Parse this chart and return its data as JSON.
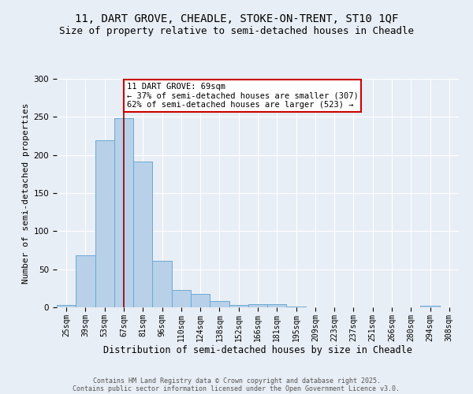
{
  "title_line1": "11, DART GROVE, CHEADLE, STOKE-ON-TRENT, ST10 1QF",
  "title_line2": "Size of property relative to semi-detached houses in Cheadle",
  "xlabel": "Distribution of semi-detached houses by size in Cheadle",
  "ylabel": "Number of semi-detached properties",
  "categories": [
    "25sqm",
    "39sqm",
    "53sqm",
    "67sqm",
    "81sqm",
    "96sqm",
    "110sqm",
    "124sqm",
    "138sqm",
    "152sqm",
    "166sqm",
    "181sqm",
    "195sqm",
    "209sqm",
    "223sqm",
    "237sqm",
    "251sqm",
    "266sqm",
    "280sqm",
    "294sqm",
    "308sqm"
  ],
  "values": [
    3,
    68,
    219,
    248,
    191,
    61,
    23,
    18,
    8,
    3,
    4,
    4,
    1,
    0,
    0,
    0,
    0,
    0,
    0,
    2,
    0
  ],
  "bar_color": "#b8d0e8",
  "bar_edge_color": "#6aaad4",
  "marker_bin_index": 3,
  "marker_color": "#8b0000",
  "annotation_title": "11 DART GROVE: 69sqm",
  "annotation_line2": "← 37% of semi-detached houses are smaller (307)",
  "annotation_line3": "62% of semi-detached houses are larger (523) →",
  "annotation_box_color": "#ffffff",
  "annotation_border_color": "#cc0000",
  "ylim": [
    0,
    300
  ],
  "yticks": [
    0,
    50,
    100,
    150,
    200,
    250,
    300
  ],
  "footnote1": "Contains HM Land Registry data © Crown copyright and database right 2025.",
  "footnote2": "Contains public sector information licensed under the Open Government Licence v3.0.",
  "background_color": "#e8eef5",
  "plot_bg_color": "#e8eef5",
  "title_fontsize": 10,
  "subtitle_fontsize": 9,
  "tick_fontsize": 7,
  "ylabel_fontsize": 8,
  "xlabel_fontsize": 8.5,
  "footnote_fontsize": 6,
  "annotation_fontsize": 7.5
}
